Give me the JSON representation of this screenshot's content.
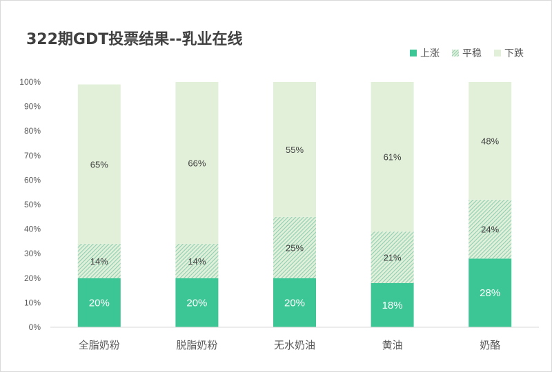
{
  "chart_data": {
    "type": "bar",
    "stacked": true,
    "title": "322期GDT投票结果--乳业在线",
    "categories": [
      "全脂奶粉",
      "脱脂奶粉",
      "无水奶油",
      "黄油",
      "奶酪"
    ],
    "series": [
      {
        "name": "上涨",
        "values": [
          20,
          20,
          20,
          18,
          28
        ],
        "labels": [
          "20%",
          "20%",
          "20%",
          "18%",
          "28%"
        ],
        "color": "#3cc695",
        "pattern": "solid"
      },
      {
        "name": "平稳",
        "values": [
          14,
          14,
          25,
          21,
          24
        ],
        "labels": [
          "14%",
          "14%",
          "25%",
          "21%",
          "24%"
        ],
        "color": "#8ccfb3",
        "pattern": "hatch"
      },
      {
        "name": "下跌",
        "values": [
          65,
          66,
          55,
          61,
          48
        ],
        "labels": [
          "65%",
          "66%",
          "55%",
          "61%",
          "48%"
        ],
        "color": "#e2f0d9",
        "pattern": "solid"
      }
    ],
    "yticks": [
      "0%",
      "10%",
      "20%",
      "30%",
      "40%",
      "50%",
      "60%",
      "70%",
      "80%",
      "90%",
      "100%"
    ],
    "ylim": [
      0,
      100
    ],
    "grid": false,
    "legend_position": "top-right"
  }
}
